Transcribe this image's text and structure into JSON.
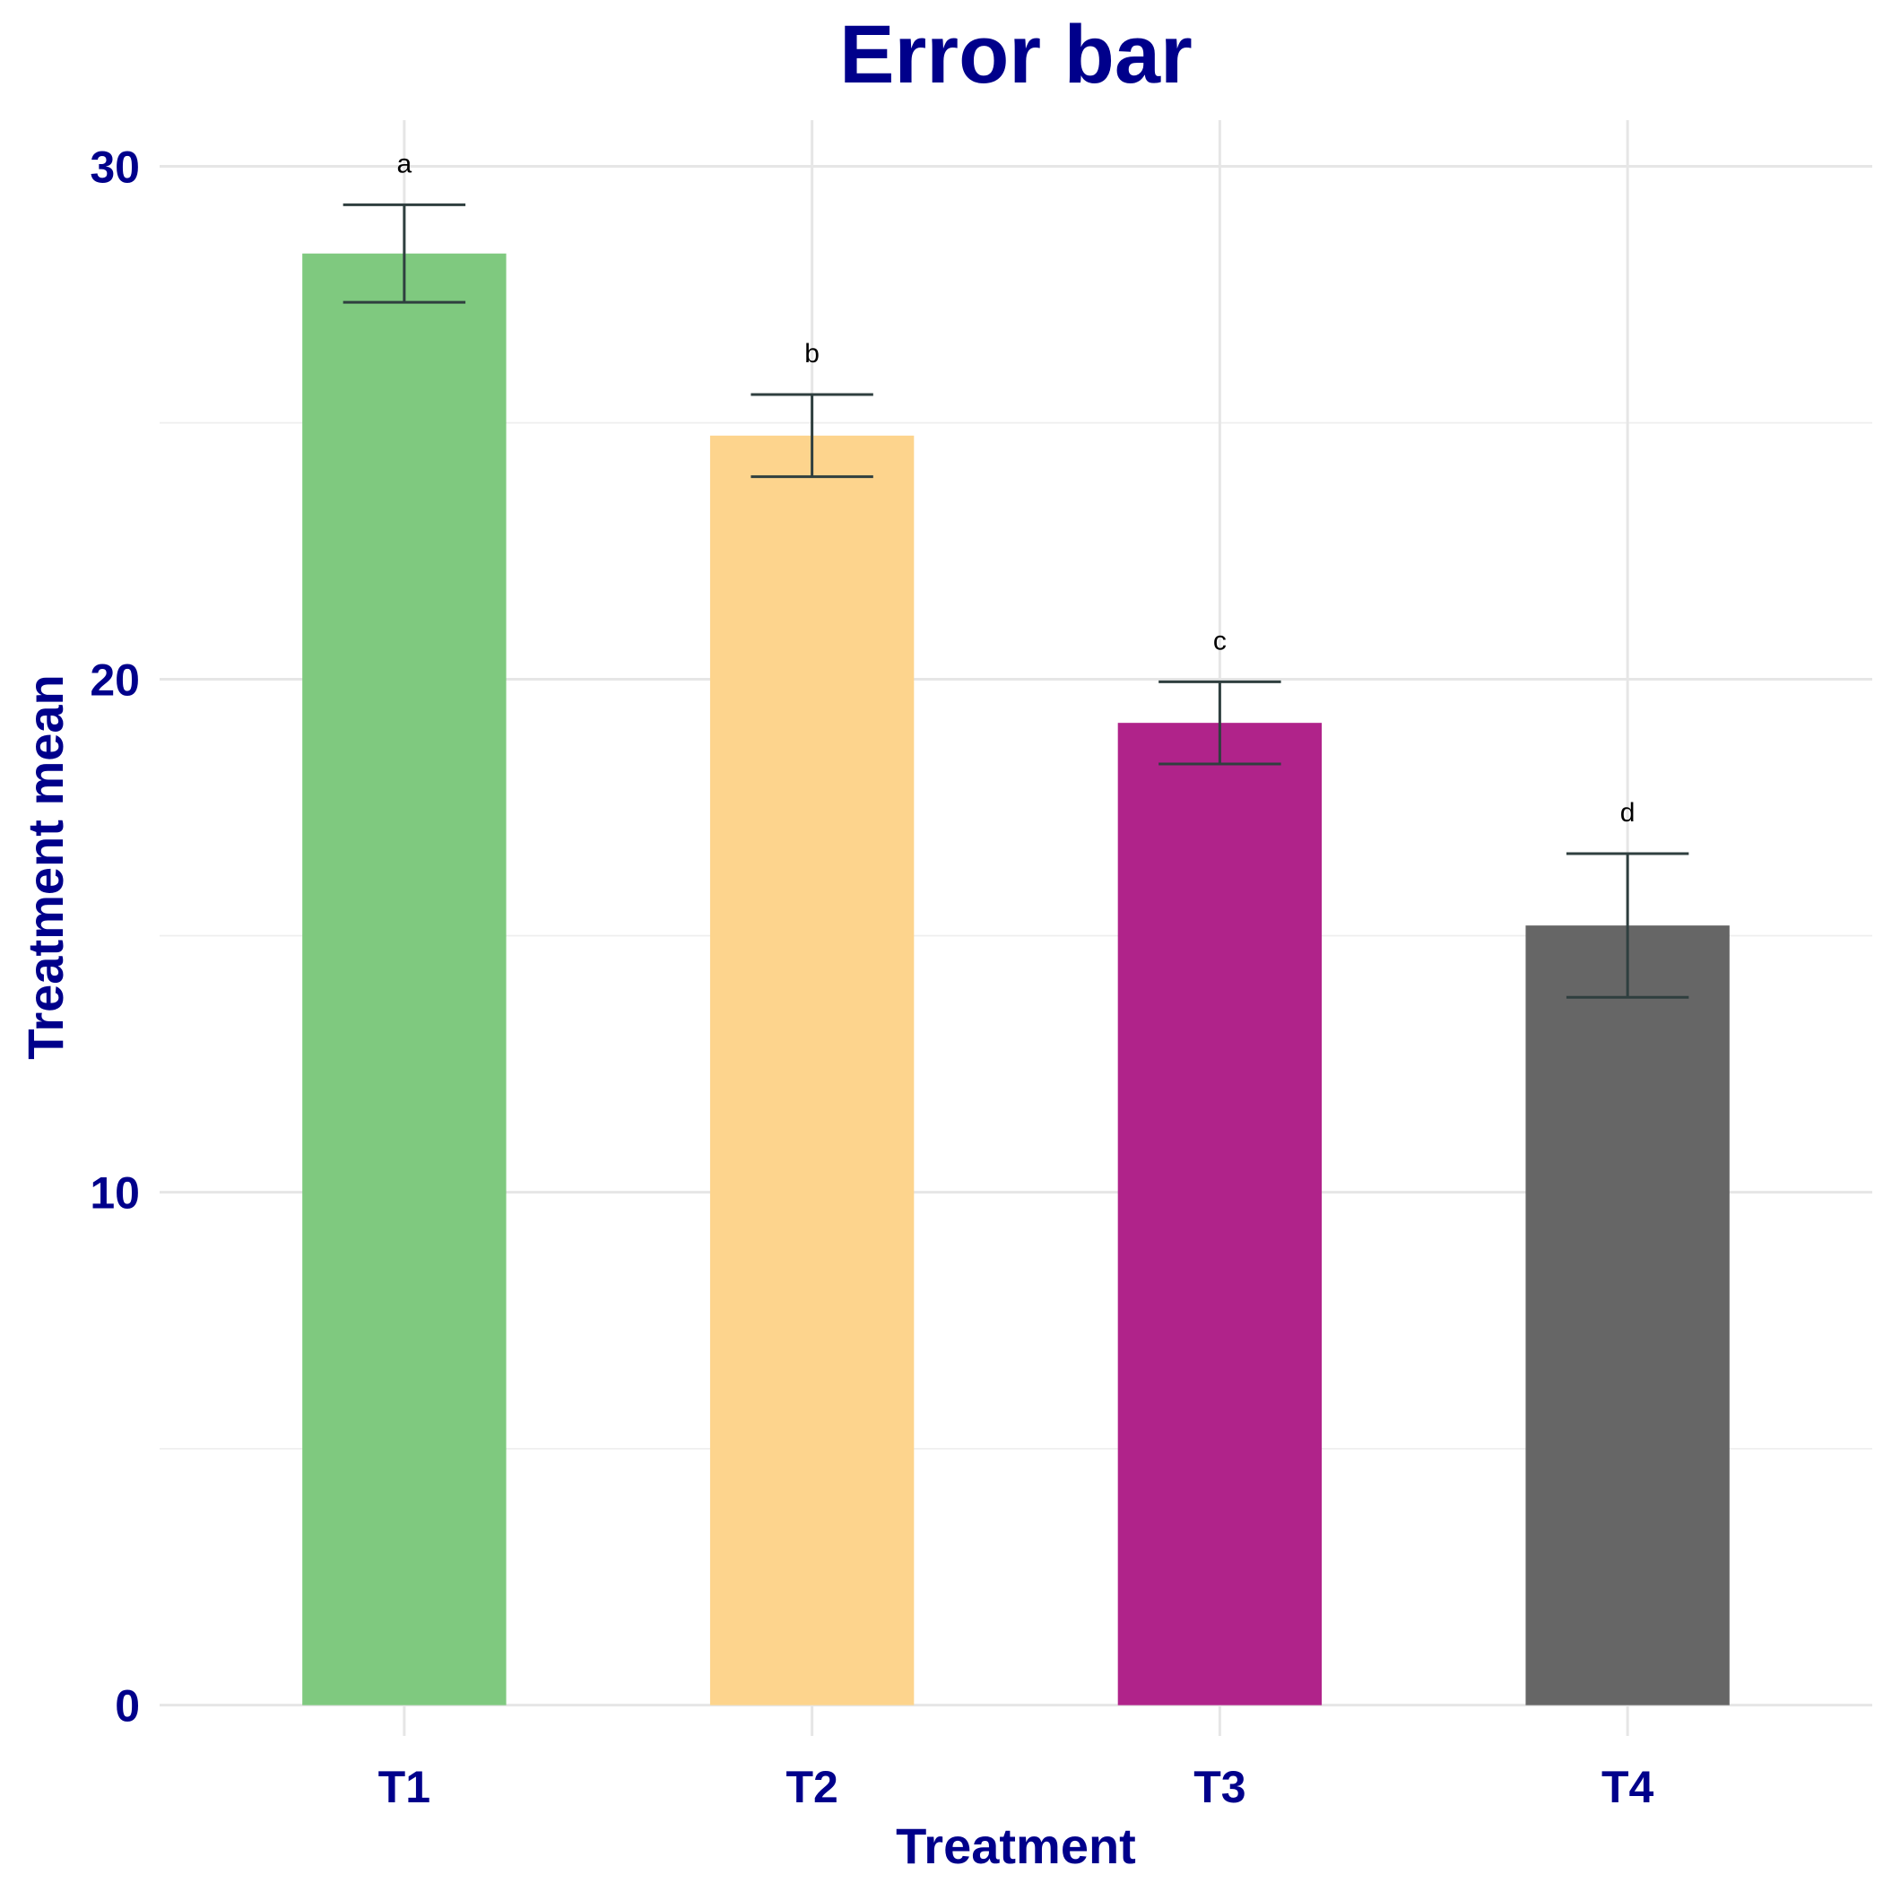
{
  "chart_data": {
    "type": "bar",
    "title": "Error bar",
    "xlabel": "Treatment",
    "ylabel": "Treatment mean",
    "categories": [
      "T1",
      "T2",
      "T3",
      "T4"
    ],
    "values": [
      28.3,
      24.75,
      19.15,
      15.2
    ],
    "error_low": [
      27.35,
      23.95,
      18.35,
      13.8
    ],
    "error_high": [
      29.25,
      25.55,
      19.95,
      16.6
    ],
    "group_labels": [
      "a",
      "b",
      "c",
      "d"
    ],
    "colors": [
      "#7fc97f",
      "#fdd48d",
      "#b0238a",
      "#666666"
    ],
    "ylim": [
      -0.6,
      30.9
    ],
    "yticks": [
      0,
      10,
      20,
      30
    ],
    "grid": true,
    "legend": "none"
  }
}
